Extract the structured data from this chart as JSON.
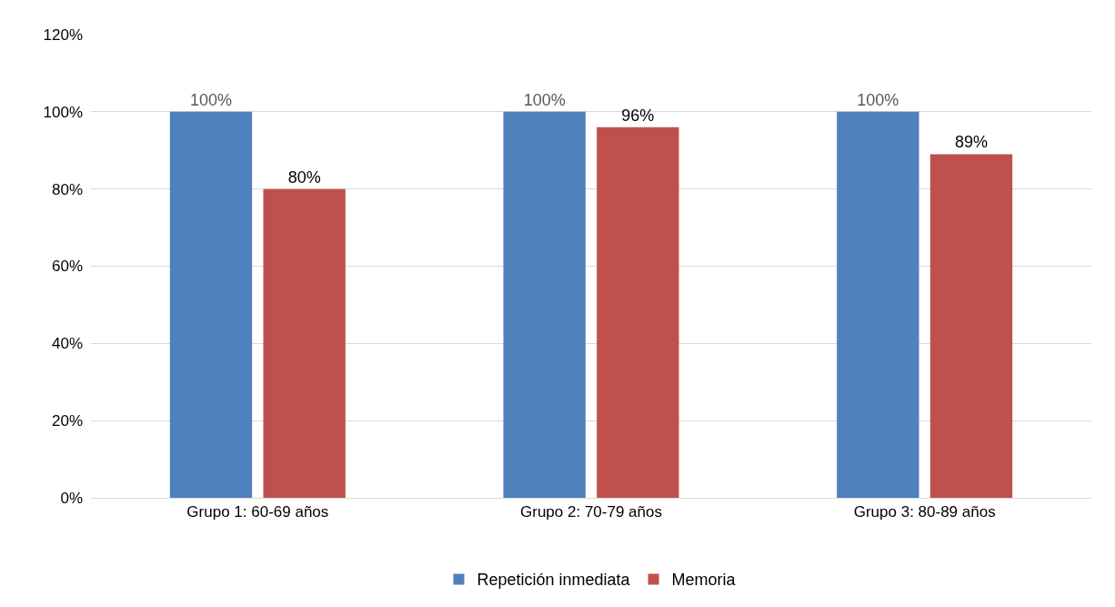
{
  "chart_data": {
    "type": "bar",
    "categories": [
      "Grupo 1: 60-69 años",
      "Grupo 2: 70-79 años",
      "Grupo 3: 80-89 años"
    ],
    "series": [
      {
        "name": "Repetición inmediata",
        "color": "#4f81bd",
        "values": [
          100,
          100,
          100
        ],
        "value_labels": [
          "100%",
          "100%",
          "100%"
        ]
      },
      {
        "name": "Memoria",
        "color": "#c0504d",
        "values": [
          80,
          96,
          89
        ],
        "value_labels": [
          "80%",
          "96%",
          "89%"
        ]
      }
    ],
    "ylim": [
      0,
      120
    ],
    "yticks": [
      {
        "value": 0,
        "label": "0%"
      },
      {
        "value": 20,
        "label": "20%"
      },
      {
        "value": 40,
        "label": "40%"
      },
      {
        "value": 60,
        "label": "60%"
      },
      {
        "value": 80,
        "label": "80%"
      },
      {
        "value": 100,
        "label": "100%"
      },
      {
        "value": 120,
        "label": "120%"
      }
    ],
    "grid": "y",
    "legend": "bottom"
  }
}
